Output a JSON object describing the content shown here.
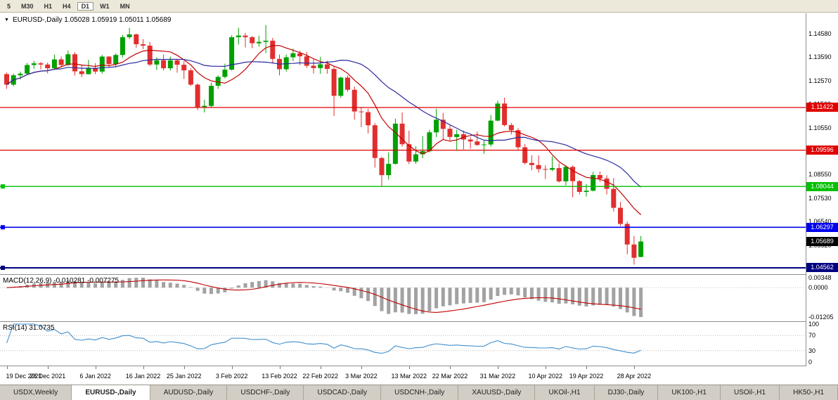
{
  "toolbar": {
    "timeframes": [
      {
        "label": "5",
        "active": false
      },
      {
        "label": "M30",
        "active": false
      },
      {
        "label": "H1",
        "active": false
      },
      {
        "label": "H4",
        "active": false
      },
      {
        "label": "D1",
        "active": true
      },
      {
        "label": "W1",
        "active": false
      },
      {
        "label": "MN",
        "active": false
      }
    ]
  },
  "chart_header": {
    "text": "EURUSD-,Daily 1.05028 1.05919 1.05011 1.05689"
  },
  "colors": {
    "up": "#00a000",
    "down": "#e12e2e",
    "background": "#ffffff"
  },
  "chart_data": {
    "type": "candlestick",
    "symbol": "EURUSD-",
    "timeframe": "Daily",
    "y_range": [
      1.0429,
      1.1545
    ],
    "y_ticks": [
      "1.14580",
      "1.13590",
      "1.12570",
      "1.11560",
      "1.10550",
      "1.09530",
      "1.08550",
      "1.07530",
      "1.06540",
      "1.05520",
      "1.04500"
    ],
    "x_labels": [
      {
        "text": "19 Dec 2021",
        "i": 0
      },
      {
        "text": "28 Dec 2021",
        "i": 6
      },
      {
        "text": "6 Jan 2022",
        "i": 13
      },
      {
        "text": "16 Jan 2022",
        "i": 20
      },
      {
        "text": "25 Jan 2022",
        "i": 26
      },
      {
        "text": "3 Feb 2022",
        "i": 33
      },
      {
        "text": "13 Feb 2022",
        "i": 40
      },
      {
        "text": "22 Feb 2022",
        "i": 46
      },
      {
        "text": "3 Mar 2022",
        "i": 52
      },
      {
        "text": "13 Mar 2022",
        "i": 59
      },
      {
        "text": "22 Mar 2022",
        "i": 65
      },
      {
        "text": "31 Mar 2022",
        "i": 72
      },
      {
        "text": "10 Apr 2022",
        "i": 79
      },
      {
        "text": "19 Apr 2022",
        "i": 85
      },
      {
        "text": "28 Apr 2022",
        "i": 92
      }
    ],
    "h_lines": [
      {
        "price": 1.11422,
        "label": "1.11422",
        "color": "#e00000",
        "width": 1.2,
        "handle": false
      },
      {
        "price": 1.09596,
        "label": "1.09596",
        "color": "#e00000",
        "width": 1.2,
        "handle": false
      },
      {
        "price": 1.08044,
        "label": "1.08044",
        "color": "#00c000",
        "width": 1.4,
        "handle": true
      },
      {
        "price": 1.06297,
        "label": "1.06297",
        "color": "#0000f0",
        "width": 1.6,
        "handle": true
      },
      {
        "price": 1.04562,
        "label": "1.04562",
        "color": "#000080",
        "width": 2,
        "handle": true
      }
    ],
    "current_price": {
      "price": 1.05689,
      "label": "1.05689",
      "color": "#000000"
    },
    "moving_averages": [
      {
        "period": 8,
        "color": "#c00000"
      },
      {
        "period": 20,
        "color": "#2b2ba0"
      }
    ],
    "macd": {
      "text": "MACD(12,26,9) -0.010281 -0.007275",
      "fast": 12,
      "slow": 26,
      "signal": 9,
      "axis_labels": [
        "0.00348",
        "0.0000",
        "-0.01205"
      ],
      "bar_color": "#a2a2a2",
      "line_color": "#c00000"
    },
    "rsi": {
      "text": "RSI(14) 31.0735",
      "period": 14,
      "levels": [
        70,
        30
      ],
      "color": "#3f8fce",
      "axis_labels": [
        {
          "v": 100,
          "t": "100"
        },
        {
          "v": 70,
          "t": "70"
        },
        {
          "v": 30,
          "t": "30"
        },
        {
          "v": 0,
          "t": "0"
        }
      ]
    },
    "ohlc": [
      [
        1.1285,
        1.1291,
        1.1222,
        1.124
      ],
      [
        1.124,
        1.1287,
        1.1233,
        1.128
      ],
      [
        1.128,
        1.1296,
        1.1262,
        1.1287
      ],
      [
        1.1287,
        1.1333,
        1.1285,
        1.1324
      ],
      [
        1.1324,
        1.1342,
        1.1308,
        1.1331
      ],
      [
        1.1331,
        1.1337,
        1.1305,
        1.1326
      ],
      [
        1.1326,
        1.1335,
        1.1288,
        1.131
      ],
      [
        1.131,
        1.1369,
        1.1303,
        1.1348
      ],
      [
        1.1348,
        1.136,
        1.1316,
        1.1324
      ],
      [
        1.1324,
        1.1386,
        1.1321,
        1.137
      ],
      [
        1.137,
        1.1379,
        1.1279,
        1.1297
      ],
      [
        1.1297,
        1.1323,
        1.1272,
        1.1285
      ],
      [
        1.1285,
        1.1346,
        1.1284,
        1.1312
      ],
      [
        1.1312,
        1.1332,
        1.1285,
        1.1296
      ],
      [
        1.1296,
        1.1367,
        1.1287,
        1.136
      ],
      [
        1.136,
        1.1362,
        1.1313,
        1.1328
      ],
      [
        1.1328,
        1.1374,
        1.1314,
        1.1367
      ],
      [
        1.1367,
        1.1453,
        1.1356,
        1.1443
      ],
      [
        1.1443,
        1.1483,
        1.1435,
        1.1455
      ],
      [
        1.1455,
        1.1459,
        1.1398,
        1.1413
      ],
      [
        1.1413,
        1.1435,
        1.1392,
        1.1407
      ],
      [
        1.1407,
        1.1422,
        1.1319,
        1.1326
      ],
      [
        1.1326,
        1.1357,
        1.1303,
        1.1344
      ],
      [
        1.1344,
        1.1369,
        1.1301,
        1.131
      ],
      [
        1.131,
        1.136,
        1.13,
        1.1344
      ],
      [
        1.1344,
        1.1349,
        1.1291,
        1.1325
      ],
      [
        1.1325,
        1.134,
        1.1264,
        1.1301
      ],
      [
        1.1301,
        1.131,
        1.1235,
        1.124
      ],
      [
        1.124,
        1.1245,
        1.1131,
        1.1144
      ],
      [
        1.1144,
        1.1175,
        1.1121,
        1.1149
      ],
      [
        1.1149,
        1.1248,
        1.1141,
        1.1235
      ],
      [
        1.1235,
        1.1279,
        1.1222,
        1.1273
      ],
      [
        1.1273,
        1.133,
        1.1267,
        1.1304
      ],
      [
        1.1304,
        1.1451,
        1.13,
        1.1443
      ],
      [
        1.1443,
        1.1483,
        1.1411,
        1.145
      ],
      [
        1.145,
        1.1461,
        1.1399,
        1.1443
      ],
      [
        1.1443,
        1.1448,
        1.1396,
        1.1417
      ],
      [
        1.1417,
        1.1449,
        1.1403,
        1.1423
      ],
      [
        1.1423,
        1.1495,
        1.1375,
        1.1428
      ],
      [
        1.1428,
        1.144,
        1.133,
        1.135
      ],
      [
        1.135,
        1.1369,
        1.128,
        1.1306
      ],
      [
        1.1306,
        1.1369,
        1.1296,
        1.1357
      ],
      [
        1.1357,
        1.1395,
        1.134,
        1.1374
      ],
      [
        1.1374,
        1.1385,
        1.1324,
        1.1361
      ],
      [
        1.1361,
        1.138,
        1.1312,
        1.1321
      ],
      [
        1.1321,
        1.1349,
        1.1287,
        1.1311
      ],
      [
        1.1311,
        1.1359,
        1.1286,
        1.1327
      ],
      [
        1.1327,
        1.1342,
        1.1287,
        1.1307
      ],
      [
        1.1307,
        1.1316,
        1.1106,
        1.1192
      ],
      [
        1.1192,
        1.1274,
        1.1184,
        1.127
      ],
      [
        1.127,
        1.1279,
        1.121,
        1.1218
      ],
      [
        1.1218,
        1.1232,
        1.109,
        1.1125
      ],
      [
        1.1125,
        1.1144,
        1.1058,
        1.1122
      ],
      [
        1.1122,
        1.1137,
        1.1031,
        1.1066
      ],
      [
        1.1066,
        1.1075,
        1.0885,
        1.0926
      ],
      [
        1.0926,
        1.0931,
        1.0806,
        1.0853
      ],
      [
        1.0853,
        1.095,
        1.0834,
        1.0901
      ],
      [
        1.0901,
        1.1095,
        1.0899,
        1.1073
      ],
      [
        1.1073,
        1.1121,
        1.0975,
        1.0985
      ],
      [
        1.0985,
        1.1043,
        1.09,
        1.0911
      ],
      [
        1.0911,
        1.0976,
        1.0901,
        1.0942
      ],
      [
        1.0942,
        1.102,
        1.0925,
        1.0955
      ],
      [
        1.0955,
        1.1047,
        1.095,
        1.1036
      ],
      [
        1.1036,
        1.1137,
        1.1015,
        1.109
      ],
      [
        1.109,
        1.1119,
        1.1003,
        1.1051
      ],
      [
        1.1051,
        1.1069,
        1.1001,
        1.1016
      ],
      [
        1.1016,
        1.1047,
        1.0961,
        1.1028
      ],
      [
        1.1028,
        1.1044,
        1.0963,
        1.1005
      ],
      [
        1.1005,
        1.1015,
        1.0966,
        1.0997
      ],
      [
        1.0997,
        1.1039,
        1.0978,
        1.0982
      ],
      [
        1.0982,
        1.1,
        1.0944,
        1.0984
      ],
      [
        1.0984,
        1.111,
        1.0975,
        1.1086
      ],
      [
        1.1086,
        1.1171,
        1.1083,
        1.1159
      ],
      [
        1.1159,
        1.1184,
        1.1061,
        1.1067
      ],
      [
        1.1067,
        1.1076,
        1.1027,
        1.1045
      ],
      [
        1.1045,
        1.1054,
        1.0961,
        1.0972
      ],
      [
        1.0972,
        1.0986,
        1.0898,
        1.0905
      ],
      [
        1.0905,
        1.0937,
        1.0874,
        1.0896
      ],
      [
        1.0896,
        1.0937,
        1.0864,
        1.0879
      ],
      [
        1.0879,
        1.0895,
        1.0836,
        1.0876
      ],
      [
        1.0876,
        1.0933,
        1.087,
        1.0883
      ],
      [
        1.0883,
        1.0904,
        1.0821,
        1.0826
      ],
      [
        1.0826,
        1.0896,
        1.0809,
        1.0888
      ],
      [
        1.0888,
        1.0895,
        1.0758,
        1.0827
      ],
      [
        1.0827,
        1.0832,
        1.077,
        1.0781
      ],
      [
        1.0781,
        1.0815,
        1.0761,
        1.0786
      ],
      [
        1.0786,
        1.0867,
        1.0783,
        1.0853
      ],
      [
        1.0853,
        1.0868,
        1.0824,
        1.0838
      ],
      [
        1.0838,
        1.0852,
        1.077,
        1.0794
      ],
      [
        1.0794,
        1.084,
        1.0697,
        1.0713
      ],
      [
        1.0713,
        1.0738,
        1.0635,
        1.0644
      ],
      [
        1.0644,
        1.0655,
        1.0514,
        1.0556
      ],
      [
        1.0556,
        1.0592,
        1.047,
        1.0499
      ],
      [
        1.05028,
        1.05919,
        1.05011,
        1.05689
      ]
    ]
  },
  "tabs": [
    {
      "label": "USDX,Weekly",
      "active": false
    },
    {
      "label": "EURUSD-,Daily",
      "active": true
    },
    {
      "label": "AUDUSD-,Daily",
      "active": false
    },
    {
      "label": "USDCHF-,Daily",
      "active": false
    },
    {
      "label": "USDCAD-,Daily",
      "active": false
    },
    {
      "label": "USDCNH-,Daily",
      "active": false
    },
    {
      "label": "XAUUSD-,Daily",
      "active": false
    },
    {
      "label": "UKOil-,H1",
      "active": false
    },
    {
      "label": "DJ30-,Daily",
      "active": false
    },
    {
      "label": "UK100-,H1",
      "active": false
    },
    {
      "label": "USOil-,H1",
      "active": false
    },
    {
      "label": "HK50-,H1",
      "active": false
    }
  ]
}
